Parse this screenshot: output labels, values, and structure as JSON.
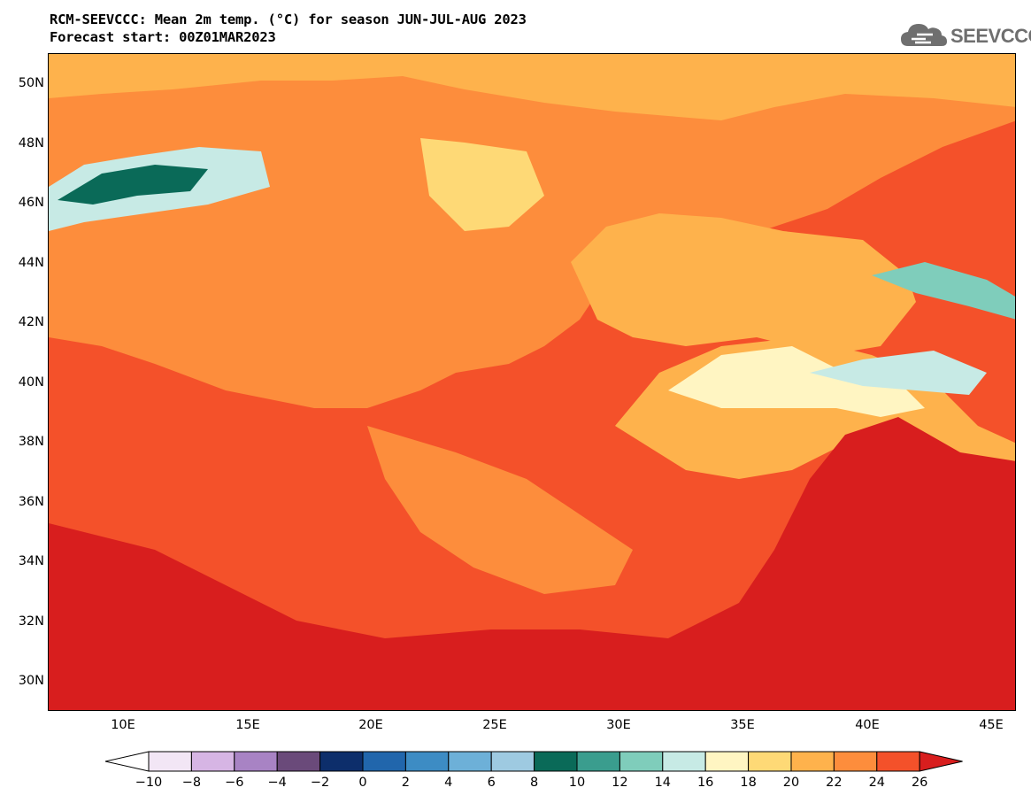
{
  "header": {
    "title_line1": "RCM-SEEVCCC: Mean 2m temp. (°C) for season JUN-JUL-AUG 2023",
    "title_line2": "Forecast start: 00Z01MAR2023",
    "logo_text": "SEEVCCC",
    "logo_icon": "cloud-icon"
  },
  "map": {
    "latitude_labels": [
      "50N",
      "48N",
      "46N",
      "44N",
      "42N",
      "40N",
      "38N",
      "36N",
      "34N",
      "32N",
      "30N"
    ],
    "longitude_labels": [
      "10E",
      "15E",
      "20E",
      "25E",
      "30E",
      "35E",
      "40E",
      "45E"
    ]
  },
  "colorbar": {
    "tick_labels": [
      "−10",
      "−8",
      "−6",
      "−4",
      "−2",
      "0",
      "2",
      "4",
      "6",
      "8",
      "10",
      "12",
      "14",
      "16",
      "18",
      "20",
      "22",
      "24",
      "26"
    ],
    "colors": [
      "#f2e6f5",
      "#d6b5e4",
      "#a883c4",
      "#6a4a7a",
      "#0d2e6b",
      "#2166ac",
      "#3d8cc4",
      "#6db0d8",
      "#9ecae1",
      "#0a6a58",
      "#3a9d8e",
      "#7fcdbb",
      "#c7eae5",
      "#fff5c2",
      "#fed976",
      "#feb24c",
      "#fd8d3c",
      "#f4512a",
      "#d81e1e"
    ]
  }
}
